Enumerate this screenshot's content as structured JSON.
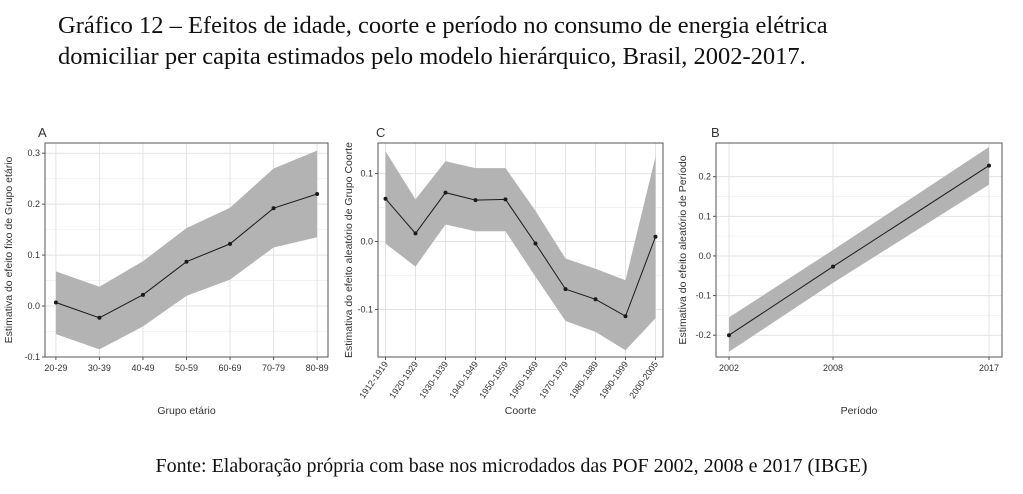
{
  "header": {
    "title_line1": "Gráfico 12 – Efeitos de idade, coorte e período no consumo de energia elétrica",
    "title_line2": "domiciliar per capita estimados pelo modelo hierárquico, Brasil, 2002-2017."
  },
  "footer": {
    "source": "Fonte: Elaboração própria com base nos microdados das POF 2002, 2008 e 2017 (IBGE)"
  },
  "colors": {
    "ribbon": "#b3b3b3",
    "line": "#1a1a1a",
    "grid_major": "#e3e3e3",
    "grid_minor": "#f1f1f1",
    "border": "#555555"
  },
  "chart_data": [
    {
      "id": "A",
      "type": "line",
      "panel_label": "A",
      "title": "",
      "xlabel": "Grupo etário",
      "ylabel": "Estimativa do efeito fixo de Grupo etário",
      "categories": [
        "20-29",
        "30-39",
        "40-49",
        "50-59",
        "60-69",
        "70-79",
        "80-89"
      ],
      "values": [
        0.007,
        -0.023,
        0.022,
        0.087,
        0.122,
        0.192,
        0.22
      ],
      "lower": [
        -0.055,
        -0.085,
        -0.04,
        0.02,
        0.052,
        0.115,
        0.135
      ],
      "upper": [
        0.068,
        0.038,
        0.088,
        0.153,
        0.193,
        0.27,
        0.305
      ],
      "ylim": [
        -0.1,
        0.32
      ],
      "yticks": [
        -0.1,
        0.0,
        0.1,
        0.2,
        0.3
      ],
      "ytick_labels": [
        "-0.1",
        "0.0",
        "0.1",
        "0.2",
        "0.3"
      ],
      "grid": true
    },
    {
      "id": "C",
      "type": "line",
      "panel_label": "C",
      "title": "",
      "xlabel": "Coorte",
      "ylabel": "Estimativa do efeito aleatório de Grupo Coorte",
      "categories": [
        "1912-1919",
        "1920-1929",
        "1930-1939",
        "1940-1949",
        "1950-1959",
        "1960-1969",
        "1970-1979",
        "1980-1989",
        "1990-1999",
        "2000-2005"
      ],
      "values": [
        0.063,
        0.012,
        0.072,
        0.061,
        0.062,
        -0.003,
        -0.07,
        -0.085,
        -0.11,
        0.007
      ],
      "lower": [
        -0.003,
        -0.037,
        0.025,
        0.015,
        0.015,
        -0.052,
        -0.117,
        -0.133,
        -0.16,
        -0.113
      ],
      "upper": [
        0.133,
        0.062,
        0.118,
        0.108,
        0.108,
        0.045,
        -0.025,
        -0.04,
        -0.057,
        0.125
      ],
      "ylim": [
        -0.17,
        0.145
      ],
      "yticks": [
        -0.1,
        0.0,
        0.1
      ],
      "ytick_labels": [
        "-0.1",
        "0.0",
        "0.1"
      ],
      "grid": true
    },
    {
      "id": "B",
      "type": "line",
      "panel_label": "B",
      "title": "",
      "xlabel": "Período",
      "ylabel": "Estimativa do efeito aleatório de Período",
      "x": [
        2002,
        2008,
        2017
      ],
      "xticks": [
        2002,
        2008,
        2017
      ],
      "xtick_labels": [
        "2002",
        "2008",
        "2017"
      ],
      "xlim": [
        2001.25,
        2017.75
      ],
      "values": [
        -0.2,
        -0.027,
        0.228
      ],
      "lower": [
        -0.242,
        -0.068,
        0.18
      ],
      "upper": [
        -0.155,
        0.015,
        0.275
      ],
      "ylim": [
        -0.255,
        0.285
      ],
      "yticks": [
        -0.2,
        -0.1,
        0.0,
        0.1,
        0.2
      ],
      "ytick_labels": [
        "-0.2",
        "-0.1",
        "0.0",
        "0.1",
        "0.2"
      ],
      "grid": true
    }
  ]
}
